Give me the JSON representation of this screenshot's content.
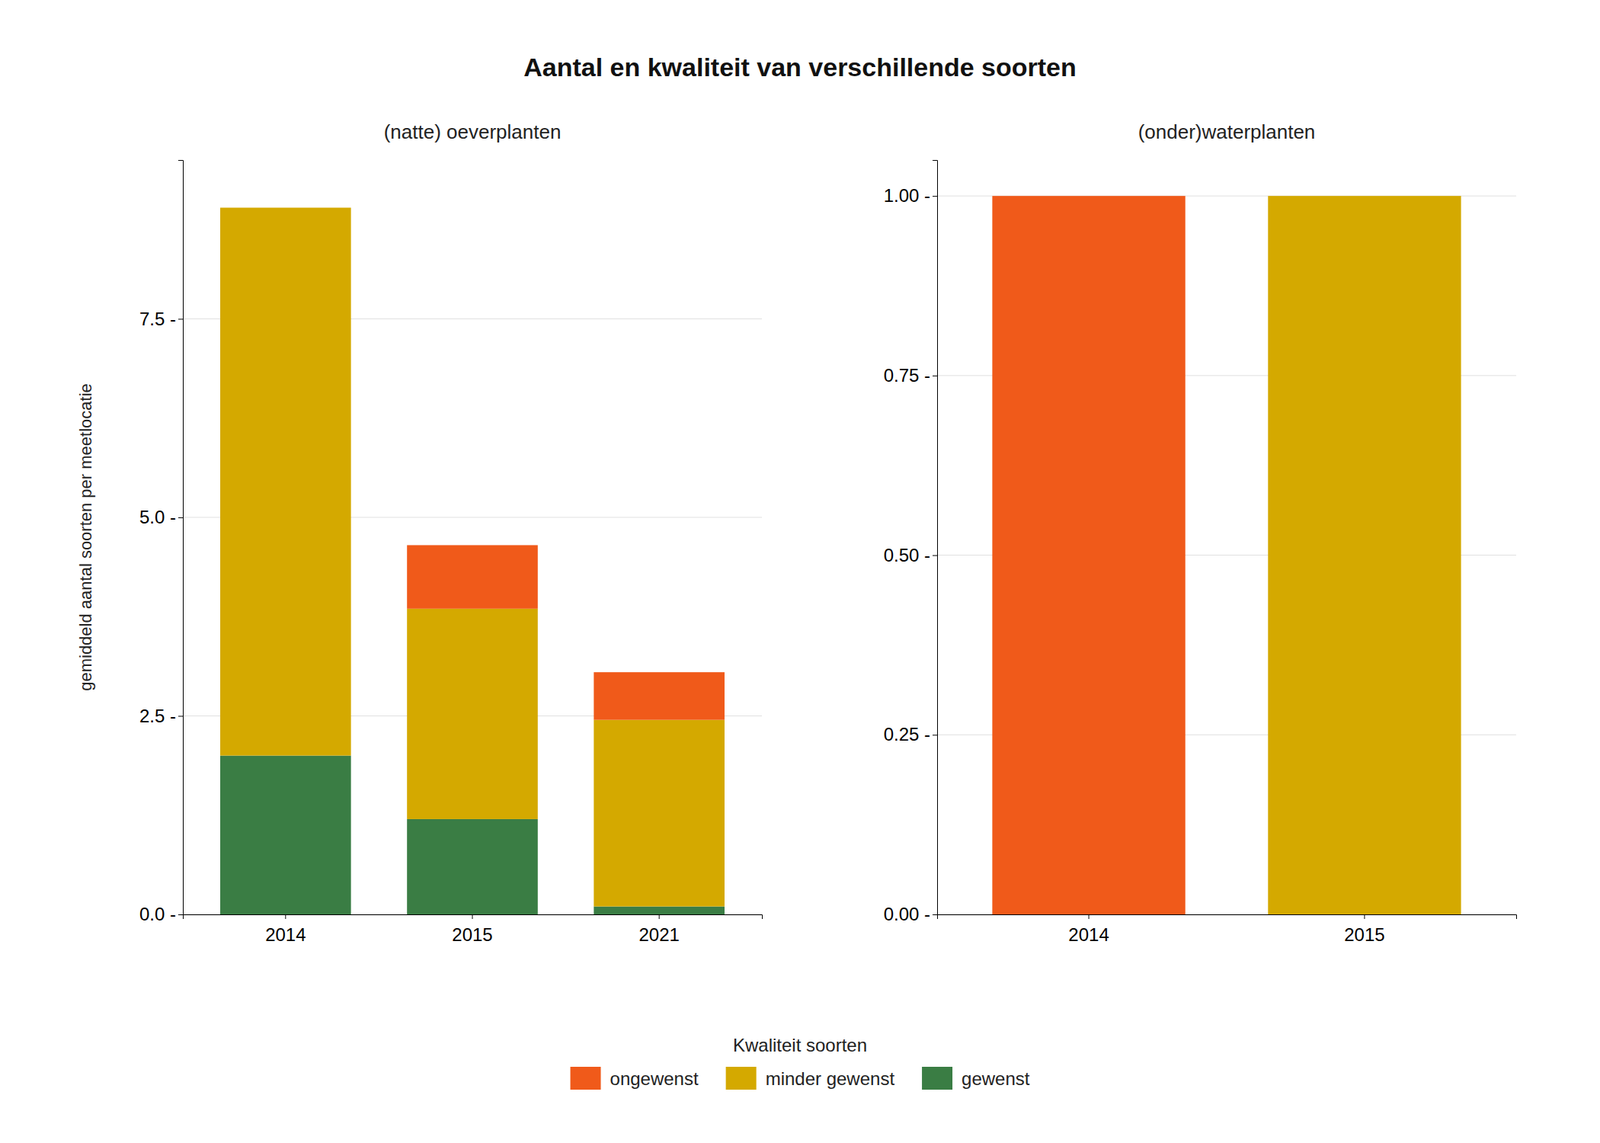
{
  "chart_data": [
    {
      "type": "bar",
      "stacked": true,
      "grid": true,
      "legend": "bottom",
      "title": "Aantal en kwaliteit van verschillende soorten",
      "subtitle": "(natte) oeverplanten",
      "ylabel": "gemiddeld aantal soorten per meetlocatie",
      "legend_title": "Kwaliteit soorten",
      "categories": [
        "2014",
        "2015",
        "2021"
      ],
      "series": [
        {
          "name": "gewenst",
          "color": "#3A7D44",
          "values": [
            2.0,
            1.2,
            0.1
          ]
        },
        {
          "name": "minder gewenst",
          "color": "#D4A900",
          "values": [
            6.9,
            2.65,
            2.35
          ]
        },
        {
          "name": "ongewenst",
          "color": "#F05A1A",
          "values": [
            0.0,
            0.8,
            0.6
          ]
        }
      ],
      "ylim": [
        0,
        9.5
      ],
      "yticks": [
        {
          "value": 0.0,
          "label": "0.0 -"
        },
        {
          "value": 2.5,
          "label": "2.5 -"
        },
        {
          "value": 5.0,
          "label": "5.0 -"
        },
        {
          "value": 7.5,
          "label": "7.5 -"
        }
      ]
    },
    {
      "type": "bar",
      "stacked": true,
      "grid": true,
      "subtitle": "(onder)waterplanten",
      "categories": [
        "2014",
        "2015"
      ],
      "series": [
        {
          "color": "#3A7D44",
          "values": [
            0.0,
            0.0
          ]
        },
        {
          "color": "#D4A900",
          "values": [
            0.0,
            1.0
          ]
        },
        {
          "color": "#F05A1A",
          "values": [
            1.0,
            0.0
          ]
        }
      ],
      "ylim": [
        0,
        1.05
      ],
      "yticks": [
        {
          "value": 0.0,
          "label": "0.00 -"
        },
        {
          "value": 0.25,
          "label": "0.25 -"
        },
        {
          "value": 0.5,
          "label": "0.50 -"
        },
        {
          "value": 0.75,
          "label": "0.75 -"
        },
        {
          "value": 1.0,
          "label": "1.00 -"
        }
      ]
    }
  ]
}
